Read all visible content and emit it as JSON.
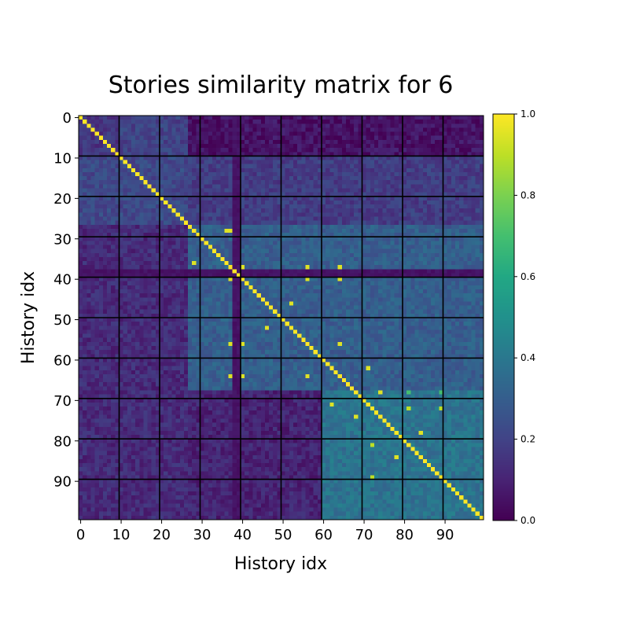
{
  "chart_data": {
    "type": "heatmap",
    "title": "Stories similarity matrix for 6",
    "xlabel": "History idx",
    "ylabel": "History idx",
    "size": 100,
    "x_ticks": [
      0,
      10,
      20,
      30,
      40,
      50,
      60,
      70,
      80,
      90
    ],
    "y_ticks": [
      0,
      10,
      20,
      30,
      40,
      50,
      60,
      70,
      80,
      90
    ],
    "xlim": [
      0,
      99
    ],
    "ylim": [
      99,
      0
    ],
    "grid": true,
    "grid_spacing": 10,
    "grid_color": "#000000",
    "colormap": "viridis",
    "vmin": 0.0,
    "vmax": 1.0,
    "colorbar": {
      "ticks": [
        0.0,
        0.2,
        0.4,
        0.6,
        0.8,
        1.0
      ],
      "tick_labels": [
        "0.0",
        "0.2",
        "0.4",
        "0.6",
        "0.8",
        "1.0"
      ]
    },
    "diagonal_value": 1.0,
    "regions": [
      {
        "rows": [
          0,
          9
        ],
        "cols": [
          0,
          9
        ],
        "approx_value": 0.15
      },
      {
        "rows": [
          0,
          9
        ],
        "cols": [
          10,
          26
        ],
        "approx_value": 0.2
      },
      {
        "rows": [
          0,
          9
        ],
        "cols": [
          27,
          99
        ],
        "approx_value": 0.05
      },
      {
        "rows": [
          10,
          26
        ],
        "cols": [
          0,
          26
        ],
        "approx_value": 0.22
      },
      {
        "rows": [
          10,
          26
        ],
        "cols": [
          27,
          99
        ],
        "approx_value": 0.18
      },
      {
        "rows": [
          27,
          67
        ],
        "cols": [
          27,
          99
        ],
        "approx_value": 0.3
      },
      {
        "rows": [
          68,
          99
        ],
        "cols": [
          60,
          99
        ],
        "approx_value": 0.38
      },
      {
        "rows": [
          27,
          99
        ],
        "cols": [
          0,
          26
        ],
        "approx_value": 0.12
      }
    ],
    "dark_bands": {
      "rows": [
        38,
        39
      ],
      "cols": [
        38,
        39
      ],
      "approx_value": 0.03
    },
    "notable_cells": [
      {
        "row": 28,
        "col": 36,
        "value": 0.95
      },
      {
        "row": 28,
        "col": 37,
        "value": 0.95
      },
      {
        "row": 36,
        "col": 28,
        "value": 0.95
      },
      {
        "row": 37,
        "col": 40,
        "value": 0.95
      },
      {
        "row": 37,
        "col": 56,
        "value": 0.95
      },
      {
        "row": 37,
        "col": 64,
        "value": 0.95
      },
      {
        "row": 40,
        "col": 37,
        "value": 0.95
      },
      {
        "row": 40,
        "col": 56,
        "value": 0.95
      },
      {
        "row": 40,
        "col": 64,
        "value": 0.95
      },
      {
        "row": 46,
        "col": 52,
        "value": 0.95
      },
      {
        "row": 52,
        "col": 46,
        "value": 0.95
      },
      {
        "row": 56,
        "col": 37,
        "value": 0.95
      },
      {
        "row": 56,
        "col": 40,
        "value": 0.95
      },
      {
        "row": 56,
        "col": 64,
        "value": 0.95
      },
      {
        "row": 64,
        "col": 37,
        "value": 0.95
      },
      {
        "row": 64,
        "col": 40,
        "value": 0.95
      },
      {
        "row": 64,
        "col": 56,
        "value": 0.95
      },
      {
        "row": 62,
        "col": 71,
        "value": 0.95
      },
      {
        "row": 71,
        "col": 62,
        "value": 0.95
      },
      {
        "row": 68,
        "col": 74,
        "value": 0.95
      },
      {
        "row": 74,
        "col": 68,
        "value": 0.95
      },
      {
        "row": 68,
        "col": 81,
        "value": 0.7
      },
      {
        "row": 68,
        "col": 89,
        "value": 0.7
      },
      {
        "row": 78,
        "col": 84,
        "value": 0.95
      },
      {
        "row": 84,
        "col": 78,
        "value": 0.95
      },
      {
        "row": 81,
        "col": 72,
        "value": 0.9
      },
      {
        "row": 89,
        "col": 72,
        "value": 0.9
      },
      {
        "row": 72,
        "col": 81,
        "value": 0.9
      },
      {
        "row": 72,
        "col": 89,
        "value": 0.9
      }
    ]
  }
}
